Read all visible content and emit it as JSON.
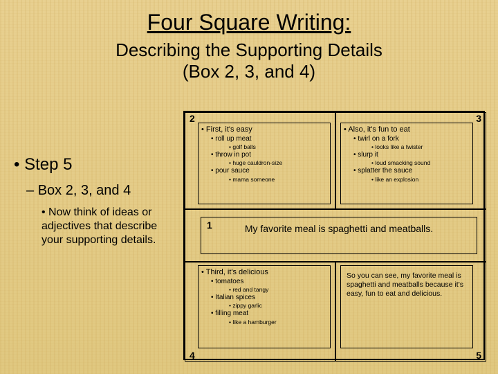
{
  "title": "Four Square Writing:",
  "subtitle_line1": "Describing the Supporting Details",
  "subtitle_line2": "(Box 2, 3, and 4)",
  "left": {
    "step": "Step 5",
    "sub": "Box 2, 3, and 4",
    "body": "Now think of ideas or adjectives that describe your supporting details."
  },
  "nums": {
    "n1": "1",
    "n2": "2",
    "n3": "3",
    "n4": "4",
    "n5": "5"
  },
  "box2": {
    "head": "First, it's easy",
    "a": "roll up meat",
    "a1": "golf balls",
    "b": "throw in pot",
    "b1": "huge cauldron-size",
    "c": "pour sauce",
    "c1": "mama someone"
  },
  "box3": {
    "head": "Also, it's fun to eat",
    "a": "twirl on a fork",
    "a1": "looks like a twister",
    "b": "slurp it",
    "b1": "loud smacking sound",
    "c": "splatter the sauce",
    "c1": "like an explosion"
  },
  "center": "My favorite meal is spaghetti and meatballs.",
  "box4": {
    "head": "Third, it's delicious",
    "a": "tomatoes",
    "a1": "red and tangy",
    "b": "Italian spices",
    "b1": "zippy garlic",
    "c": "filling meat",
    "c1": "like a hamburger"
  },
  "box5": "So you can see, my favorite meal is spaghetti and meatballs because it's easy, fun to eat and delicious."
}
